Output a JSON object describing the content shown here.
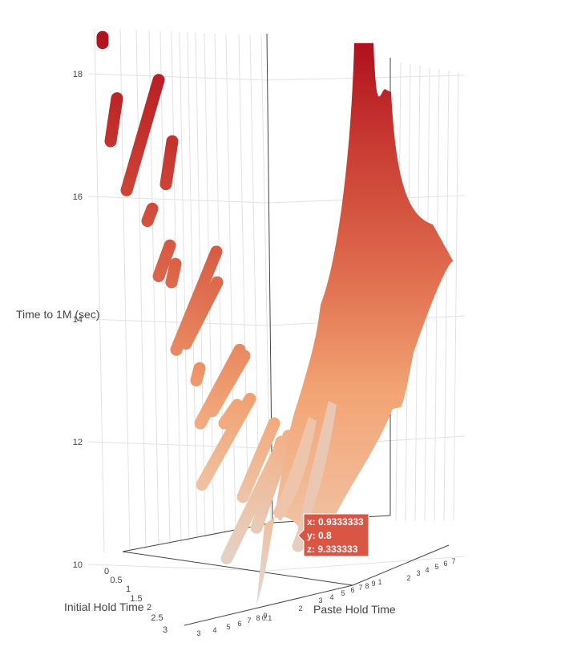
{
  "chart_data": {
    "type": "scatter3d",
    "axes": {
      "x": {
        "title": "Paste Hold Time",
        "tick_labels": [
          "0.1",
          "2",
          "3",
          "4",
          "5",
          "6",
          "7",
          "8",
          "9",
          "1",
          "2",
          "3",
          "4",
          "5",
          "6",
          "7"
        ]
      },
      "y": {
        "title": "Initial Hold Time",
        "tick_labels": [
          "0",
          "0.5",
          "1",
          "1.5",
          "2",
          "2.5",
          "3"
        ]
      },
      "z": {
        "title": "Time to 1M (sec)",
        "tick_labels": [
          "10",
          "12",
          "14",
          "16",
          "18"
        ],
        "range": [
          9.3,
          18.7
        ]
      }
    },
    "near_axis_tick_labels": [
      "3",
      "4",
      "5",
      "6",
      "7",
      "8",
      "9",
      "0.1"
    ],
    "colorscale": {
      "low": "#dcdcdc",
      "mid": "#f2a474",
      "high": "#b0101e"
    },
    "tooltip": {
      "x_label": "x: 0.9333333",
      "y_label": "y: 0.8",
      "z_label": "z: 9.333333",
      "color": "#d95544"
    },
    "strokes": [
      {
        "z1": 18.6,
        "z2": 18.5
      },
      {
        "z1": 17.6,
        "z2": 16.9
      },
      {
        "z1": 17.9,
        "z2": 16.1
      },
      {
        "z1": 16.9,
        "z2": 16.2
      },
      {
        "z1": 15.8,
        "z2": 15.6
      },
      {
        "z1": 15.2,
        "z2": 14.7
      },
      {
        "z1": 14.9,
        "z2": 14.6
      },
      {
        "z1": 15.1,
        "z2": 13.5
      },
      {
        "z1": 14.6,
        "z2": 13.6
      },
      {
        "z1": 13.2,
        "z2": 13.0
      },
      {
        "z1": 13.4,
        "z2": 12.5
      },
      {
        "z1": 13.5,
        "z2": 12.3
      },
      {
        "z1": 12.6,
        "z2": 12.3
      },
      {
        "z1": 12.7,
        "z2": 11.3
      },
      {
        "z1": 12.3,
        "z2": 11.1
      },
      {
        "z1": 12.0,
        "z2": 11.5
      },
      {
        "z1": 11.8,
        "z2": 10.1
      },
      {
        "z1": 12.1,
        "z2": 10.6
      },
      {
        "z1": 11.6,
        "z2": 10.3
      }
    ],
    "surface": {
      "main_top": 18.5,
      "peak2": 17.7,
      "right_shoulder": 14.8,
      "bottom": 9.33
    }
  }
}
